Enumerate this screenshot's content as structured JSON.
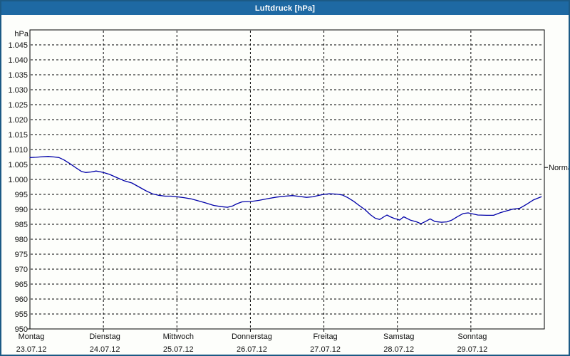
{
  "window": {
    "title": "Luftdruck [hPa]"
  },
  "colors": {
    "titlebar": "#1e69a3",
    "window_border": "#1c5a85",
    "background": "#fdfefb",
    "line": "#0000a8",
    "grid": "#000000",
    "text": "#111111"
  },
  "chart_data": {
    "type": "line",
    "title": "Luftdruck [hPa]",
    "unit_label": "hPa",
    "grid": true,
    "y_axis": {
      "min": 950,
      "max": 1050,
      "tick_step": 5,
      "tick_values": [
        1045,
        1040,
        1035,
        1030,
        1025,
        1020,
        1015,
        1010,
        1005,
        1000,
        995,
        990,
        985,
        980,
        975,
        970,
        965,
        960,
        955,
        950
      ],
      "tick_labels": [
        "1.045",
        "1.040",
        "1.035",
        "1.030",
        "1.025",
        "1.020",
        "1.015",
        "1.010",
        "1.005",
        "1.000",
        "995",
        "990",
        "985",
        "980",
        "975",
        "970",
        "965",
        "960",
        "955",
        "950"
      ]
    },
    "x_axis": {
      "hours_total": 168,
      "days": [
        {
          "day": "Montag",
          "date": "23.07.12"
        },
        {
          "day": "Dienstag",
          "date": "24.07.12"
        },
        {
          "day": "Mittwoch",
          "date": "25.07.12"
        },
        {
          "day": "Donnerstag",
          "date": "26.07.12"
        },
        {
          "day": "Freitag",
          "date": "27.07.12"
        },
        {
          "day": "Samstag",
          "date": "28.07.12"
        },
        {
          "day": "Sonntag",
          "date": "29.07.12"
        }
      ]
    },
    "normal_marker": {
      "label": "Normal",
      "value": 1004
    },
    "series": [
      {
        "name": "Luftdruck",
        "color": "#0000a8",
        "points": [
          [
            0,
            1007.3
          ],
          [
            2,
            1007.4
          ],
          [
            4,
            1007.6
          ],
          [
            6,
            1007.7
          ],
          [
            8,
            1007.5
          ],
          [
            9.5,
            1007.3
          ],
          [
            11,
            1006.6
          ],
          [
            13,
            1005.3
          ],
          [
            15,
            1003.9
          ],
          [
            16.8,
            1002.7
          ],
          [
            18.2,
            1002.3
          ],
          [
            20,
            1002.5
          ],
          [
            21.6,
            1002.8
          ],
          [
            22.8,
            1002.6
          ],
          [
            24,
            1002.3
          ],
          [
            26,
            1001.7
          ],
          [
            28.4,
            1000.6
          ],
          [
            30.7,
            999.6
          ],
          [
            33.3,
            998.8
          ],
          [
            35.6,
            997.5
          ],
          [
            37.9,
            996.2
          ],
          [
            40,
            995.2
          ],
          [
            42,
            994.7
          ],
          [
            44.2,
            994.4
          ],
          [
            46.1,
            994.4
          ],
          [
            48,
            994.2
          ],
          [
            50.3,
            993.9
          ],
          [
            52.6,
            993.5
          ],
          [
            54.4,
            993.0
          ],
          [
            57.2,
            992.2
          ],
          [
            60,
            991.3
          ],
          [
            62.4,
            990.9
          ],
          [
            64.5,
            990.7
          ],
          [
            66.1,
            991.1
          ],
          [
            67.7,
            991.9
          ],
          [
            69.3,
            992.5
          ],
          [
            72,
            992.6
          ],
          [
            74.8,
            993.0
          ],
          [
            77.8,
            993.6
          ],
          [
            80.6,
            994.1
          ],
          [
            83.4,
            994.4
          ],
          [
            85.7,
            994.6
          ],
          [
            88,
            994.3
          ],
          [
            90.3,
            994.0
          ],
          [
            92.4,
            994.2
          ],
          [
            94.5,
            994.7
          ],
          [
            96,
            995.0
          ],
          [
            97.8,
            995.2
          ],
          [
            100.1,
            995.1
          ],
          [
            102,
            994.8
          ],
          [
            103.8,
            993.9
          ],
          [
            105.7,
            992.7
          ],
          [
            107.5,
            991.3
          ],
          [
            109.4,
            989.9
          ],
          [
            111.2,
            988.2
          ],
          [
            112.8,
            987.0
          ],
          [
            114.2,
            986.6
          ],
          [
            115.6,
            987.5
          ],
          [
            116.6,
            988.1
          ],
          [
            117.7,
            987.5
          ],
          [
            119.1,
            986.9
          ],
          [
            120,
            986.7
          ],
          [
            120.7,
            986.4
          ],
          [
            122.1,
            987.5
          ],
          [
            124.2,
            986.4
          ],
          [
            126.3,
            985.8
          ],
          [
            127.7,
            985.2
          ],
          [
            129.3,
            986.0
          ],
          [
            130.7,
            986.8
          ],
          [
            132.3,
            985.9
          ],
          [
            134.4,
            985.7
          ],
          [
            136.2,
            985.8
          ],
          [
            137.8,
            986.4
          ],
          [
            139.7,
            987.6
          ],
          [
            141.5,
            988.6
          ],
          [
            143.1,
            988.8
          ],
          [
            144,
            988.6
          ],
          [
            146.3,
            988.1
          ],
          [
            149.1,
            988.0
          ],
          [
            151.4,
            988.0
          ],
          [
            153.7,
            988.9
          ],
          [
            156,
            989.6
          ],
          [
            157.8,
            990.1
          ],
          [
            159.9,
            990.3
          ],
          [
            162.2,
            991.7
          ],
          [
            164.5,
            993.2
          ],
          [
            167,
            994.2
          ]
        ]
      }
    ]
  }
}
